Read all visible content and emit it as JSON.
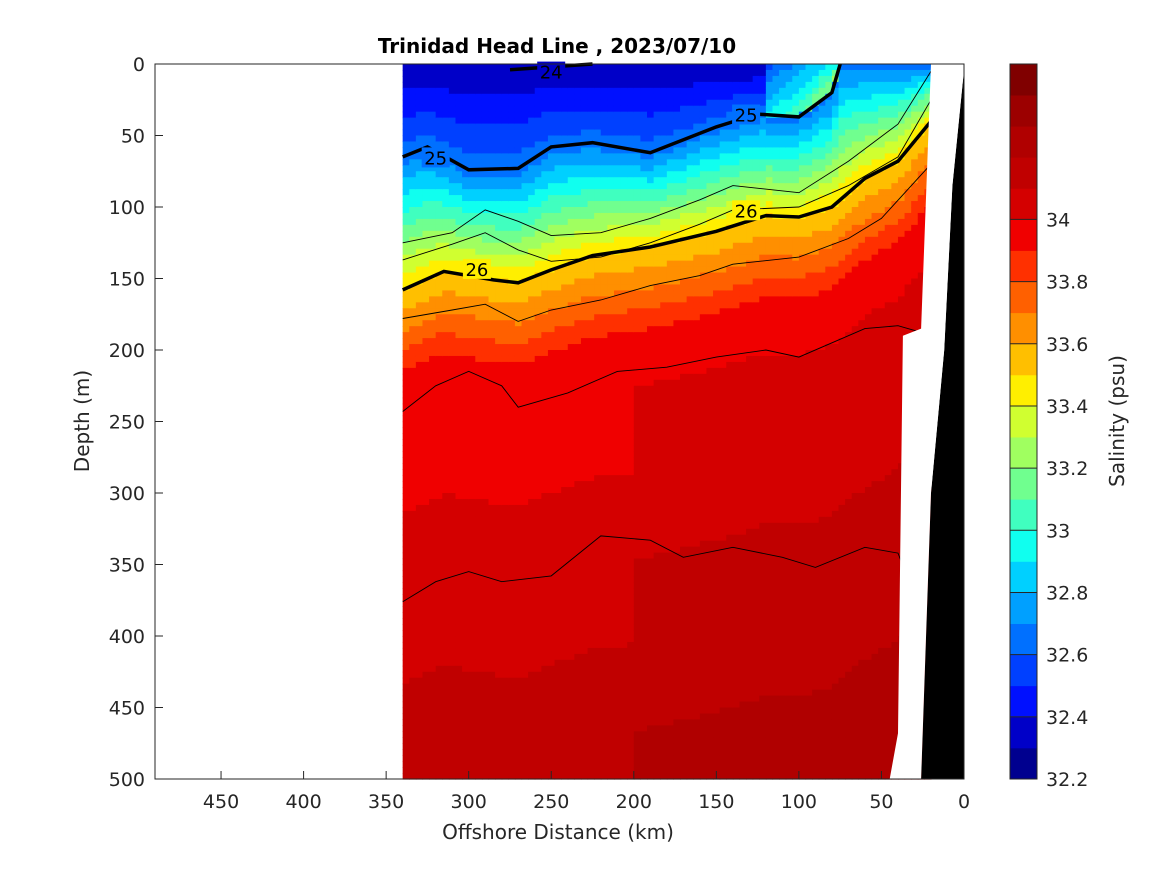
{
  "chart_data": {
    "type": "heatmap",
    "title": "Trinidad Head Line , 2023/07/10",
    "xlabel": "Offshore Distance (km)",
    "ylabel": "Depth (m)",
    "xlim": [
      490,
      0
    ],
    "ylim": [
      0,
      500
    ],
    "x_reversed": true,
    "y_reversed": true,
    "x_ticks": [
      "450",
      "400",
      "350",
      "300",
      "250",
      "200",
      "150",
      "100",
      "50",
      "0"
    ],
    "x_tick_values": [
      450,
      400,
      350,
      300,
      250,
      200,
      150,
      100,
      50,
      0
    ],
    "y_ticks": [
      "0",
      "50",
      "100",
      "150",
      "200",
      "250",
      "300",
      "350",
      "400",
      "450",
      "500"
    ],
    "y_tick_values": [
      0,
      50,
      100,
      150,
      200,
      250,
      300,
      350,
      400,
      450,
      500
    ],
    "data_x_range": [
      340,
      20
    ],
    "colorbar": {
      "label": "Salinity (psu)",
      "range": [
        32.2,
        34.5
      ],
      "ticks": [
        "32.2",
        "32.4",
        "32.6",
        "32.8",
        "33",
        "33.2",
        "33.4",
        "33.6",
        "33.8",
        "34"
      ],
      "tick_values": [
        32.2,
        32.4,
        32.6,
        32.8,
        33.0,
        33.2,
        33.4,
        33.6,
        33.8,
        34.0
      ],
      "levels": [
        32.2,
        32.3,
        32.4,
        32.5,
        32.6,
        32.7,
        32.8,
        32.9,
        33.0,
        33.1,
        33.2,
        33.3,
        33.4,
        33.5,
        33.6,
        33.7,
        33.8,
        33.9,
        34.0,
        34.1,
        34.2,
        34.3,
        34.4,
        34.5
      ],
      "colors": [
        "#00008f",
        "#0000c8",
        "#0010ff",
        "#0040ff",
        "#0070ff",
        "#00a0ff",
        "#00d0ff",
        "#10ffef",
        "#40ffbf",
        "#70ff8f",
        "#a0ff60",
        "#d0ff30",
        "#ffef00",
        "#ffbf00",
        "#ff8f00",
        "#ff6000",
        "#ff3000",
        "#f00000",
        "#d40000",
        "#c00000",
        "#b00000",
        "#9c0000",
        "#800000"
      ]
    },
    "isopycnals_labeled": [
      {
        "label": "24",
        "x": [
          275,
          225
        ],
        "depth": [
          4,
          0
        ]
      },
      {
        "label": "25",
        "x": [
          340,
          325,
          300,
          270,
          250,
          225,
          190,
          150,
          125,
          100,
          80,
          75
        ],
        "depth": [
          65,
          58,
          74,
          73,
          58,
          55,
          62,
          44,
          35,
          37,
          20,
          0
        ]
      },
      {
        "label": "26",
        "x": [
          340,
          315,
          285,
          270,
          250,
          225,
          190,
          150,
          120,
          100,
          80,
          60,
          40,
          20
        ],
        "depth": [
          158,
          145,
          151,
          153,
          144,
          134,
          128,
          117,
          106,
          107,
          100,
          80,
          68,
          40
        ]
      }
    ],
    "isopycnals_thin": [
      {
        "x": [
          340,
          310,
          290,
          270,
          250,
          220,
          190,
          160,
          140,
          100,
          70,
          40,
          20
        ],
        "depth": [
          125,
          118,
          102,
          110,
          120,
          118,
          108,
          95,
          85,
          90,
          68,
          42,
          5
        ]
      },
      {
        "x": [
          340,
          310,
          290,
          270,
          250,
          220,
          190,
          160,
          140,
          100,
          70,
          40,
          20
        ],
        "depth": [
          137,
          126,
          118,
          130,
          138,
          135,
          125,
          112,
          102,
          100,
          85,
          65,
          25
        ]
      },
      {
        "x": [
          340,
          310,
          290,
          270,
          250,
          220,
          190,
          160,
          140,
          100,
          70,
          50,
          20
        ],
        "depth": [
          178,
          172,
          168,
          180,
          172,
          165,
          155,
          148,
          140,
          135,
          122,
          108,
          70
        ]
      },
      {
        "x": [
          340,
          320,
          300,
          280,
          270,
          240,
          210,
          180,
          150,
          120,
          100,
          60,
          40,
          25
        ],
        "depth": [
          243,
          225,
          215,
          225,
          240,
          230,
          215,
          212,
          205,
          200,
          205,
          185,
          183,
          188
        ]
      },
      {
        "x": [
          340,
          320,
          300,
          280,
          250,
          220,
          190,
          170,
          140,
          110,
          90,
          60,
          40,
          30
        ],
        "depth": [
          376,
          362,
          355,
          362,
          358,
          330,
          333,
          345,
          338,
          345,
          352,
          338,
          342,
          372
        ]
      }
    ],
    "salinity_bands": [
      {
        "level": 32.2,
        "top": [
          0,
          0,
          0,
          0,
          0,
          0,
          0,
          0,
          0,
          0,
          0,
          0,
          0,
          0,
          0,
          0,
          0
        ],
        "note": "depth bands computed in script"
      }
    ]
  }
}
